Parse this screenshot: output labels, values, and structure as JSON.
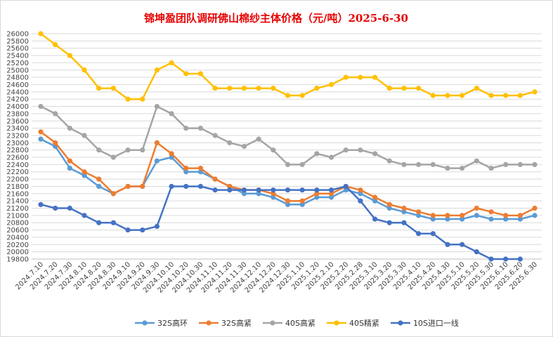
{
  "chart_data": {
    "type": "line",
    "title": "锦坤盈团队调研佛山棉纱主体价格（元/吨）2025-6-30",
    "title_color": "#e60000",
    "ylim": [
      19800,
      26000
    ],
    "ytick_step": 200,
    "grid": true,
    "legend_position": "bottom",
    "categories": [
      "2024.7.10",
      "2024.7.20",
      "2024.7.30",
      "2024.8.10",
      "2024.8.20",
      "2024.8.30",
      "2024.9.10",
      "2024.9.20",
      "2024.9.30",
      "2024.10.10",
      "2024.10.20",
      "2024.10.30",
      "2024.11.10",
      "2024.11.20",
      "2024.11.30",
      "2024.12.10",
      "2024.12.20",
      "2024.12.30",
      "2025.1.10",
      "2025.1.20",
      "2025.2.10",
      "2025.2.20",
      "2025.2.28",
      "2025.3.10",
      "2025.3.20",
      "2025.3.30",
      "2025.4.10",
      "2025.4.20",
      "2025.4.30",
      "2025.5.10",
      "2025.5.20",
      "2025.5.30",
      "2025.6.10",
      "2025.6.20",
      "2025.6.30"
    ],
    "series": [
      {
        "name": "32S高环",
        "color": "#5b9bd5",
        "values": [
          23100,
          22900,
          22300,
          22100,
          21800,
          21600,
          21800,
          21800,
          22500,
          22600,
          22200,
          22200,
          22000,
          21800,
          21600,
          21600,
          21500,
          21300,
          21300,
          21500,
          21500,
          21700,
          21600,
          21400,
          21200,
          21100,
          21000,
          20900,
          20900,
          20900,
          21000,
          20900,
          20900,
          20900,
          21000
        ]
      },
      {
        "name": "32S高紧",
        "color": "#ed7d31",
        "values": [
          23300,
          23000,
          22500,
          22200,
          22000,
          21600,
          21800,
          21800,
          23000,
          22700,
          22300,
          22300,
          22000,
          21800,
          21700,
          21700,
          21600,
          21400,
          21400,
          21600,
          21600,
          21800,
          21700,
          21500,
          21300,
          21200,
          21100,
          21000,
          21000,
          21000,
          21200,
          21100,
          21000,
          21000,
          21200
        ]
      },
      {
        "name": "40S高紧",
        "color": "#a5a5a5",
        "values": [
          24000,
          23800,
          23400,
          23200,
          22800,
          22600,
          22800,
          22800,
          24000,
          23800,
          23400,
          23400,
          23200,
          23000,
          22900,
          23100,
          22800,
          22400,
          22400,
          22700,
          22600,
          22800,
          22800,
          22700,
          22500,
          22400,
          22400,
          22400,
          22300,
          22300,
          22500,
          22300,
          22400,
          22400,
          22400
        ]
      },
      {
        "name": "40S精紧",
        "color": "#ffc000",
        "values": [
          26000,
          25700,
          25400,
          25000,
          24500,
          24500,
          24200,
          24200,
          25000,
          25200,
          24900,
          24900,
          24500,
          24500,
          24500,
          24500,
          24500,
          24300,
          24300,
          24500,
          24600,
          24800,
          24800,
          24800,
          24500,
          24500,
          24500,
          24300,
          24300,
          24300,
          24500,
          24300,
          24300,
          24300,
          24400
        ]
      },
      {
        "name": "10S进口一线",
        "color": "#4472c4",
        "values": [
          21300,
          21200,
          21200,
          21000,
          20800,
          20800,
          20600,
          20600,
          20700,
          21800,
          21800,
          21800,
          21700,
          21700,
          21700,
          21700,
          21700,
          21700,
          21700,
          21700,
          21700,
          21800,
          21400,
          20900,
          20800,
          20800,
          20500,
          20500,
          20200,
          20200,
          20000,
          19800,
          19800,
          19800,
          null
        ]
      }
    ]
  }
}
